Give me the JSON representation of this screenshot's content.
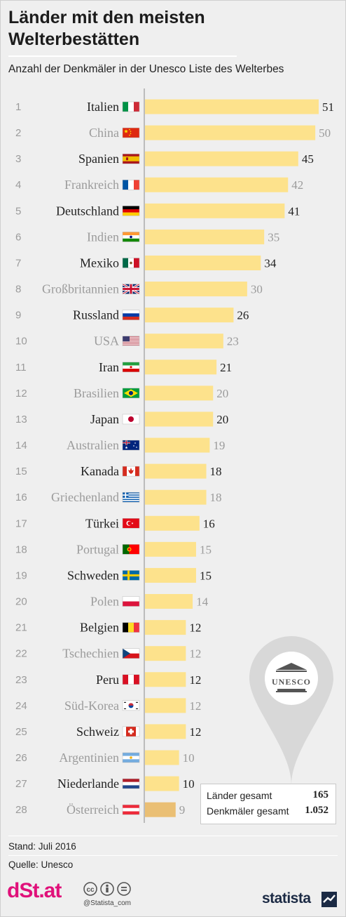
{
  "header": {
    "title": "Länder mit den meisten Welterbestätten",
    "subtitle": "Anzahl der Denkmäler in der Unesco Liste des Welterbes"
  },
  "colors": {
    "bar": "#fde28c",
    "bar_highlight": "#eabf74",
    "text_dark": "#222222",
    "text_light": "#9b9b9b",
    "brand": "#e0117a"
  },
  "chart_data": {
    "type": "bar",
    "orientation": "horizontal",
    "title": "Länder mit den meisten Welterbestätten",
    "subtitle": "Anzahl der Denkmäler in der Unesco Liste des Welterbes",
    "xlim": [
      0,
      51
    ],
    "grid": false,
    "ranks": [
      "1",
      "2",
      "3",
      "4",
      "5",
      "6",
      "7",
      "8",
      "9",
      "10",
      "11",
      "12",
      "13",
      "14",
      "15",
      "16",
      "17",
      "18",
      "19",
      "20",
      "21",
      "22",
      "23",
      "24",
      "25",
      "26",
      "27",
      "28"
    ],
    "categories": [
      "Italien",
      "China",
      "Spanien",
      "Frankreich",
      "Deutschland",
      "Indien",
      "Mexiko",
      "Großbritannien",
      "Russland",
      "USA",
      "Iran",
      "Brasilien",
      "Japan",
      "Australien",
      "Kanada",
      "Griechenland",
      "Türkei",
      "Portugal",
      "Schweden",
      "Polen",
      "Belgien",
      "Tschechien",
      "Peru",
      "Süd-Korea",
      "Schweiz",
      "Argentinien",
      "Niederlande",
      "Österreich"
    ],
    "values": [
      51,
      50,
      45,
      42,
      41,
      35,
      34,
      30,
      26,
      23,
      21,
      20,
      20,
      19,
      18,
      18,
      16,
      15,
      15,
      14,
      12,
      12,
      12,
      12,
      12,
      10,
      10,
      9
    ],
    "value_labels": [
      "51",
      "50",
      "45",
      "42",
      "41",
      "35",
      "34",
      "30",
      "26",
      "23",
      "21",
      "20",
      "20",
      "19",
      "18",
      "18",
      "16",
      "15",
      "15",
      "14",
      "12",
      "12",
      "12",
      "12",
      "12",
      "10",
      "10",
      "9"
    ],
    "flags": [
      "it",
      "cn",
      "es",
      "fr",
      "de",
      "in",
      "mx",
      "gb",
      "ru",
      "us",
      "ir",
      "br",
      "jp",
      "au",
      "ca",
      "gr",
      "tr",
      "pt",
      "se",
      "pl",
      "be",
      "cz",
      "pe",
      "kr",
      "ch",
      "ar",
      "nl",
      "at"
    ],
    "highlight": "Österreich"
  },
  "legend": {
    "countries_label": "Länder gesamt",
    "countries_value": "165",
    "monuments_label": "Denkmäler gesamt",
    "monuments_value": "1.052",
    "pin_text": "UNESCO"
  },
  "footer": {
    "stand": "Stand: Juli 2016",
    "source": "Quelle: Unesco",
    "brand_left": "dSt.at",
    "cc_handle": "@Statista_com",
    "brand_right": "statista"
  }
}
